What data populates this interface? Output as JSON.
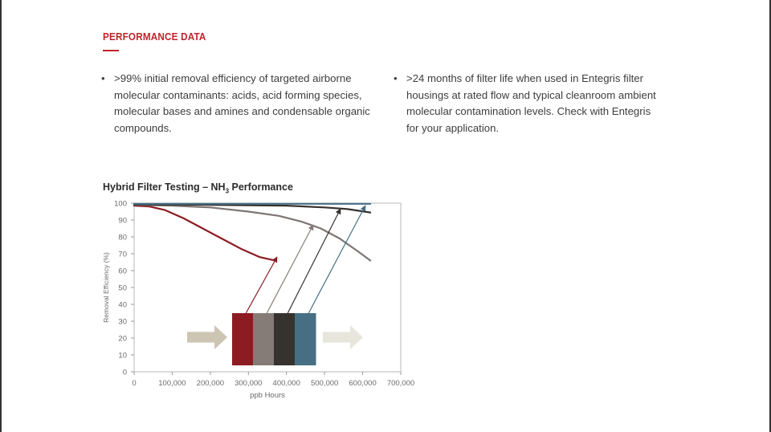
{
  "section": {
    "heading": "PERFORMANCE DATA",
    "accent_color": "#c1232b"
  },
  "bullets": [
    ">99% initial removal efficiency of targeted airborne molecular contaminants: acids, acid forming species, molecular bases and amines and condensable organic compounds.",
    ">24 months of filter life when used in Entegris filter housings at rated flow and typical cleanroom ambient molecular contamination levels. Check with Entegris for your application."
  ],
  "chart_data": {
    "type": "line",
    "title_main": "Hybrid Filter Testing – NH",
    "title_sub": "3",
    "title_end": " Performance",
    "xlabel": "ppb Hours",
    "ylabel": "Removal Efficiency (%)",
    "xlim": [
      0,
      700000
    ],
    "ylim": [
      0,
      100
    ],
    "x_ticks": [
      "0",
      "100,000",
      "200,000",
      "300,000",
      "400,000",
      "500,000",
      "600,000",
      "700,000"
    ],
    "y_ticks": [
      "0",
      "10",
      "20",
      "30",
      "40",
      "50",
      "60",
      "70",
      "80",
      "90",
      "100"
    ],
    "grid": false,
    "series": [
      {
        "color": "#8c1c22",
        "points": [
          [
            0,
            98.5
          ],
          [
            40000,
            98
          ],
          [
            80000,
            96
          ],
          [
            130000,
            91
          ],
          [
            180000,
            85
          ],
          [
            230000,
            79
          ],
          [
            280000,
            73
          ],
          [
            330000,
            68
          ],
          [
            370000,
            66
          ]
        ]
      },
      {
        "color": "#7d7573",
        "points": [
          [
            0,
            99
          ],
          [
            100000,
            98.5
          ],
          [
            200000,
            97.5
          ],
          [
            300000,
            95
          ],
          [
            380000,
            92.5
          ],
          [
            440000,
            89
          ],
          [
            490000,
            85
          ],
          [
            540000,
            79
          ],
          [
            590000,
            71
          ],
          [
            620000,
            66
          ]
        ]
      },
      {
        "color": "#36322f",
        "points": [
          [
            0,
            99.2
          ],
          [
            200000,
            99
          ],
          [
            400000,
            98.5
          ],
          [
            500000,
            97.5
          ],
          [
            560000,
            96.5
          ],
          [
            620000,
            94.5
          ]
        ]
      },
      {
        "color": "#466f84",
        "points": [
          [
            0,
            99.6
          ],
          [
            300000,
            99.6
          ],
          [
            620000,
            99.6
          ]
        ]
      }
    ],
    "media_layers": [
      "#8c1c22",
      "#857c78",
      "#36332f",
      "#466f84"
    ],
    "flow_in_color": "#cdc5b3",
    "flow_out_color": "#e8e6dc"
  }
}
